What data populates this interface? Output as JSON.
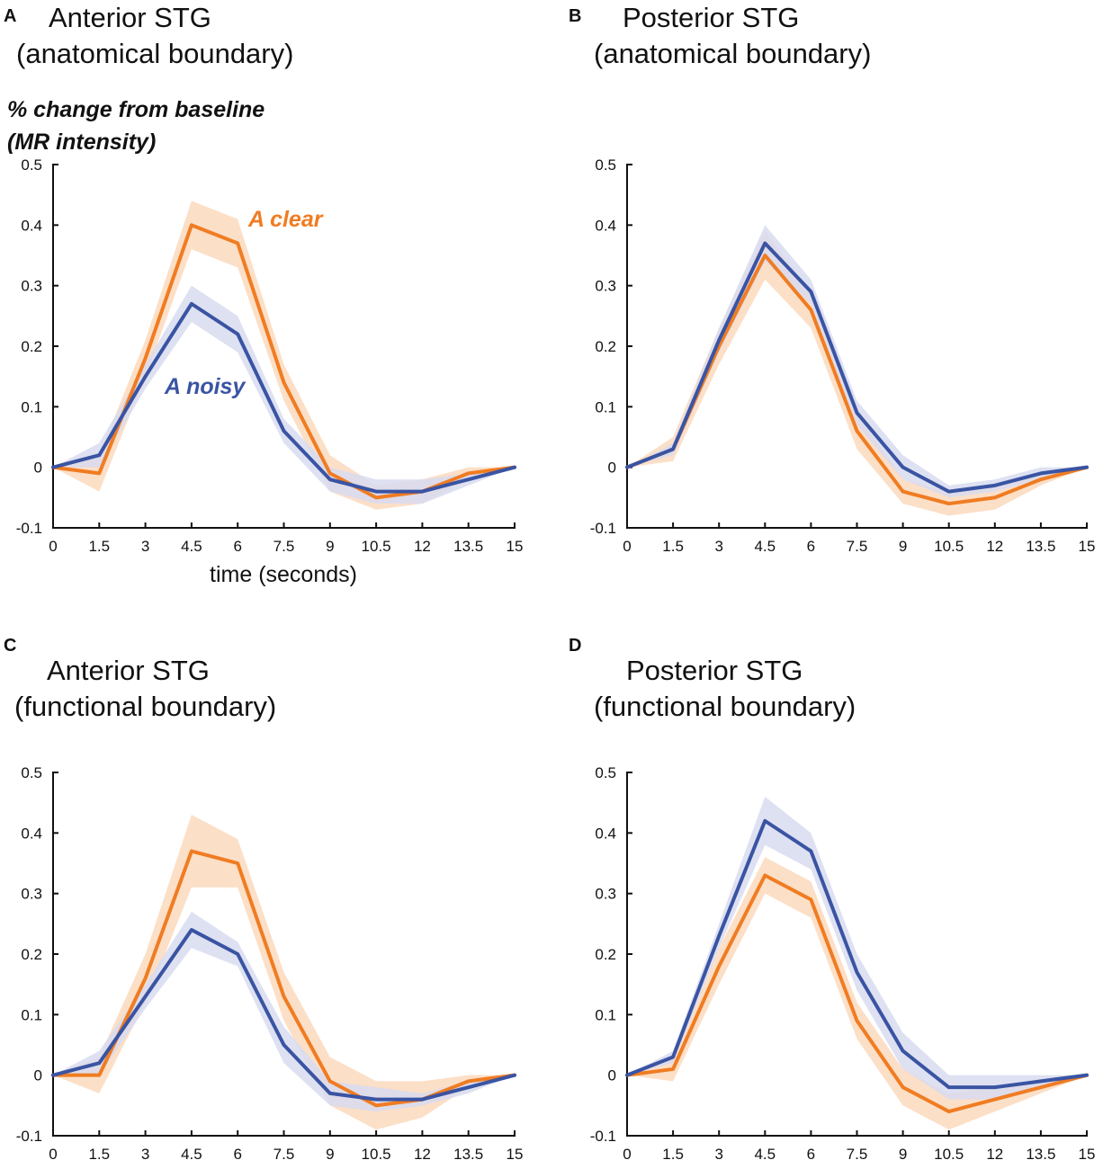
{
  "figure": {
    "ylabel_line1": "% change from baseline",
    "ylabel_line2": "(MR intensity)",
    "xlabel": "time (seconds)",
    "legend_clear": "A clear",
    "legend_noisy": "A noisy"
  },
  "colors": {
    "clear": "#f07c22",
    "clear_band": "#fcd9bd",
    "noisy": "#3a54a3",
    "noisy_band": "#d8dcf0"
  },
  "chart_data": [
    {
      "type": "line",
      "panel": "A",
      "title_line1": "Anterior STG",
      "title_line2": "(anatomical boundary)",
      "x": [
        0,
        1.5,
        3,
        4.5,
        6,
        7.5,
        9,
        10.5,
        12,
        13.5,
        15
      ],
      "x_tick_labels": [
        "0",
        "1.5",
        "3",
        "4.5",
        "6",
        "7.5",
        "9",
        "10.5",
        "12",
        "13.5",
        "15"
      ],
      "y_ticks": [
        -0.1,
        0,
        0.1,
        0.2,
        0.3,
        0.4,
        0.5
      ],
      "y_tick_labels": [
        "-0.1",
        "0",
        "0.1",
        "0.2",
        "0.3",
        "0.4",
        "0.5"
      ],
      "ylim": [
        -0.1,
        0.5
      ],
      "xlim": [
        0,
        15
      ],
      "series": [
        {
          "name": "A clear",
          "values": [
            0,
            -0.01,
            0.18,
            0.4,
            0.37,
            0.14,
            -0.01,
            -0.05,
            -0.04,
            -0.01,
            0
          ],
          "band": [
            0,
            0.03,
            0.03,
            0.04,
            0.04,
            0.03,
            0.03,
            0.02,
            0.02,
            0.01,
            0
          ]
        },
        {
          "name": "A noisy",
          "values": [
            0,
            0.02,
            0.15,
            0.27,
            0.22,
            0.06,
            -0.02,
            -0.04,
            -0.04,
            -0.02,
            0
          ],
          "band": [
            0,
            0.02,
            0.02,
            0.03,
            0.03,
            0.02,
            0.02,
            0.02,
            0.02,
            0.01,
            0
          ]
        }
      ]
    },
    {
      "type": "line",
      "panel": "B",
      "title_line1": "Posterior STG",
      "title_line2": "(anatomical boundary)",
      "x": [
        0,
        1.5,
        3,
        4.5,
        6,
        7.5,
        9,
        10.5,
        12,
        13.5,
        15
      ],
      "x_tick_labels": [
        "0",
        "1.5",
        "3",
        "4.5",
        "6",
        "7.5",
        "9",
        "10.5",
        "12",
        "13.5",
        "15"
      ],
      "y_ticks": [
        -0.1,
        0,
        0.1,
        0.2,
        0.3,
        0.4,
        0.5
      ],
      "y_tick_labels": [
        "-0.1",
        "0",
        "0.1",
        "0.2",
        "0.3",
        "0.4",
        "0.5"
      ],
      "ylim": [
        -0.1,
        0.5
      ],
      "xlim": [
        0,
        15
      ],
      "series": [
        {
          "name": "A clear",
          "values": [
            0,
            0.03,
            0.2,
            0.35,
            0.26,
            0.06,
            -0.04,
            -0.06,
            -0.05,
            -0.02,
            0
          ],
          "band": [
            0,
            0.02,
            0.03,
            0.04,
            0.03,
            0.03,
            0.02,
            0.02,
            0.02,
            0.01,
            0
          ]
        },
        {
          "name": "A noisy",
          "values": [
            0,
            0.03,
            0.21,
            0.37,
            0.29,
            0.09,
            0,
            -0.04,
            -0.03,
            -0.01,
            0
          ],
          "band": [
            0,
            0.01,
            0.02,
            0.03,
            0.02,
            0.02,
            0.02,
            0.01,
            0.01,
            0.01,
            0
          ]
        }
      ]
    },
    {
      "type": "line",
      "panel": "C",
      "title_line1": "Anterior STG",
      "title_line2": "(functional boundary)",
      "x": [
        0,
        1.5,
        3,
        4.5,
        6,
        7.5,
        9,
        10.5,
        12,
        13.5,
        15
      ],
      "x_tick_labels": [
        "0",
        "1.5",
        "3",
        "4.5",
        "6",
        "7.5",
        "9",
        "10.5",
        "12",
        "13.5",
        "15"
      ],
      "y_ticks": [
        -0.1,
        0,
        0.1,
        0.2,
        0.3,
        0.4,
        0.5
      ],
      "y_tick_labels": [
        "-0.1",
        "0",
        "0.1",
        "0.2",
        "0.3",
        "0.4",
        "0.5"
      ],
      "ylim": [
        -0.1,
        0.5
      ],
      "xlim": [
        0,
        15
      ],
      "series": [
        {
          "name": "A clear",
          "values": [
            0,
            0,
            0.16,
            0.37,
            0.35,
            0.13,
            -0.01,
            -0.05,
            -0.04,
            -0.01,
            0
          ],
          "band": [
            0,
            0.03,
            0.04,
            0.06,
            0.04,
            0.04,
            0.04,
            0.04,
            0.03,
            0.01,
            0
          ]
        },
        {
          "name": "A noisy",
          "values": [
            0,
            0.02,
            0.13,
            0.24,
            0.2,
            0.05,
            -0.03,
            -0.04,
            -0.04,
            -0.02,
            0
          ],
          "band": [
            0,
            0.02,
            0.02,
            0.03,
            0.02,
            0.03,
            0.02,
            0.02,
            0.01,
            0.01,
            0
          ]
        }
      ]
    },
    {
      "type": "line",
      "panel": "D",
      "title_line1": "Posterior STG",
      "title_line2": "(functional boundary)",
      "x": [
        0,
        1.5,
        3,
        4.5,
        6,
        7.5,
        9,
        10.5,
        12,
        13.5,
        15
      ],
      "x_tick_labels": [
        "0",
        "1.5",
        "3",
        "4.5",
        "6",
        "7.5",
        "9",
        "10.5",
        "12",
        "13.5",
        "15"
      ],
      "y_ticks": [
        -0.1,
        0,
        0.1,
        0.2,
        0.3,
        0.4,
        0.5
      ],
      "y_tick_labels": [
        "-0.1",
        "0",
        "0.1",
        "0.2",
        "0.3",
        "0.4",
        "0.5"
      ],
      "ylim": [
        -0.1,
        0.5
      ],
      "xlim": [
        0,
        15
      ],
      "series": [
        {
          "name": "A clear",
          "values": [
            0,
            0.01,
            0.18,
            0.33,
            0.29,
            0.09,
            -0.02,
            -0.06,
            -0.04,
            -0.02,
            0
          ],
          "band": [
            0,
            0.02,
            0.03,
            0.03,
            0.03,
            0.03,
            0.03,
            0.03,
            0.02,
            0.01,
            0
          ]
        },
        {
          "name": "A noisy",
          "values": [
            0,
            0.03,
            0.23,
            0.42,
            0.37,
            0.17,
            0.04,
            -0.02,
            -0.02,
            -0.01,
            0
          ],
          "band": [
            0,
            0.01,
            0.02,
            0.04,
            0.03,
            0.03,
            0.03,
            0.02,
            0.02,
            0.01,
            0
          ]
        }
      ]
    }
  ]
}
